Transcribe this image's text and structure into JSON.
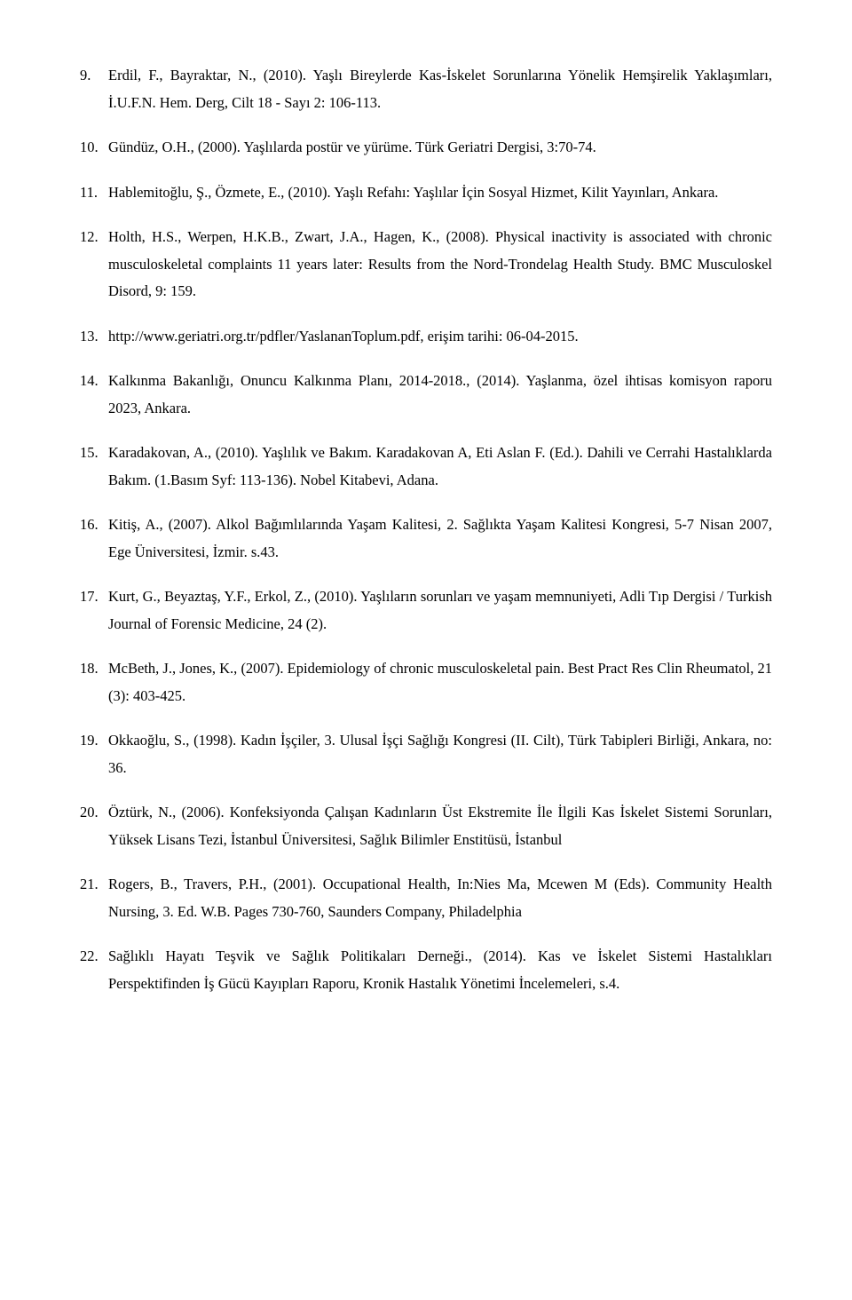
{
  "references": [
    {
      "text": "Erdil, F., Bayraktar, N., (2010). Yaşlı Bireylerde Kas-İskelet Sorunlarına Yönelik Hemşirelik Yaklaşımları, İ.U.F.N. Hem. Derg, Cilt 18 - Sayı 2: 106-113."
    },
    {
      "text": "Gündüz, O.H., (2000). Yaşlılarda postür ve yürüme. Türk Geriatri Dergisi, 3:70-74."
    },
    {
      "text": "Hablemitoğlu, Ş., Özmete, E., (2010). Yaşlı Refahı: Yaşlılar İçin Sosyal Hizmet, Kilit Yayınları, Ankara."
    },
    {
      "text": "Holth, H.S., Werpen, H.K.B., Zwart, J.A., Hagen, K., (2008). Physical inactivity is associated with chronic musculoskeletal complaints 11 years later: Results from the Nord-Trondelag Health Study. BMC Musculoskel Disord, 9: 159."
    },
    {
      "text": "http://www.geriatri.org.tr/pdfler/YaslananToplum.pdf, erişim tarihi: 06-04-2015."
    },
    {
      "text": "Kalkınma Bakanlığı, Onuncu Kalkınma Planı, 2014-2018., (2014). Yaşlanma, özel ihtisas komisyon raporu 2023, Ankara."
    },
    {
      "text": "Karadakovan, A., (2010). Yaşlılık ve Bakım. Karadakovan A, Eti Aslan F. (Ed.). Dahili ve Cerrahi Hastalıklarda Bakım. (1.Basım Syf: 113-136). Nobel Kitabevi, Adana."
    },
    {
      "text": "Kitiş, A., (2007). Alkol Bağımlılarında Yaşam Kalitesi, 2. Sağlıkta Yaşam Kalitesi Kongresi, 5-7 Nisan 2007, Ege Üniversitesi, İzmir. s.43."
    },
    {
      "text": "Kurt, G., Beyaztaş, Y.F., Erkol, Z., (2010). Yaşlıların sorunları ve yaşam memnuniyeti, Adli Tıp Dergisi / Turkish Journal of Forensic Medicine, 24 (2)."
    },
    {
      "text": "McBeth, J., Jones, K., (2007). Epidemiology of chronic musculoskeletal pain. Best Pract Res Clin Rheumatol, 21 (3): 403-425."
    },
    {
      "text": "Okkaoğlu, S., (1998). Kadın İşçiler, 3. Ulusal İşçi Sağlığı Kongresi (II. Cilt), Türk Tabipleri Birliği, Ankara, no: 36."
    },
    {
      "text": "Öztürk, N., (2006). Konfeksiyonda Çalışan Kadınların Üst Ekstremite İle İlgili Kas İskelet Sistemi Sorunları, Yüksek Lisans Tezi, İstanbul Üniversitesi, Sağlık Bilimler Enstitüsü, İstanbul"
    },
    {
      "text": "Rogers, B., Travers, P.H., (2001). Occupational Health, In:Nies Ma, Mcewen M (Eds). Community Health Nursing, 3. Ed. W.B. Pages 730-760, Saunders Company, Philadelphia"
    },
    {
      "text": "Sağlıklı Hayatı Teşvik ve Sağlık Politikaları Derneği., (2014). Kas ve İskelet Sistemi Hastalıkları Perspektifinden İş Gücü Kayıpları Raporu, Kronik Hastalık Yönetimi İncelemeleri, s.4."
    }
  ]
}
